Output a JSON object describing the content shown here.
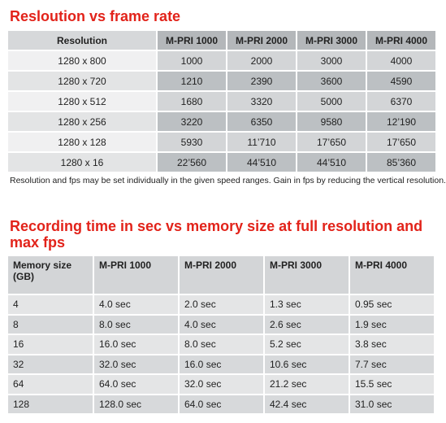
{
  "table1": {
    "title": "Resloution vs frame rate",
    "header": [
      "Resolution",
      "M-PRI 1000",
      "M-PRI 2000",
      "M-PRI 3000",
      "M-PRI 4000"
    ],
    "rows": [
      [
        "1280 x 800",
        "1000",
        "2000",
        "3000",
        "4000"
      ],
      [
        "1280 x 720",
        "1210",
        "2390",
        "3600",
        "4590"
      ],
      [
        "1280 x 512",
        "1680",
        "3320",
        "5000",
        "6370"
      ],
      [
        "1280 x 256",
        "3220",
        "6350",
        "9580",
        "12’190"
      ],
      [
        "1280 x 128",
        "5930",
        "11’710",
        "17’650",
        "17’650"
      ],
      [
        "1280 x 16",
        "22’560",
        "44’510",
        "44’510",
        "85’360"
      ]
    ],
    "note": "Resolution and fps may be set individually in the given speed ranges. Gain in fps by reducing the vertical resolution."
  },
  "table2": {
    "title": "Recording time in sec vs memory size at full resolution and max fps",
    "header": [
      "Memory size (GB)",
      "M-PRI 1000",
      "M-PRI 2000",
      "M-PRI 3000",
      "M-PRI 4000"
    ],
    "rows": [
      [
        "4",
        "4.0 sec",
        "2.0 sec",
        "1.3 sec",
        "0.95 sec"
      ],
      [
        "8",
        "8.0 sec",
        "4.0 sec",
        "2.6 sec",
        "1.9 sec"
      ],
      [
        "16",
        "16.0 sec",
        "8.0 sec",
        "5.2 sec",
        "3.8 sec"
      ],
      [
        "32",
        "32.0 sec",
        "16.0 sec",
        "10.6 sec",
        "7.7 sec"
      ],
      [
        "64",
        "64.0 sec",
        "32.0 sec",
        "21.2 sec",
        "15.5 sec"
      ],
      [
        "128",
        "128.0 sec",
        "64.0 sec",
        "42.4 sec",
        "31.0 sec"
      ]
    ]
  }
}
